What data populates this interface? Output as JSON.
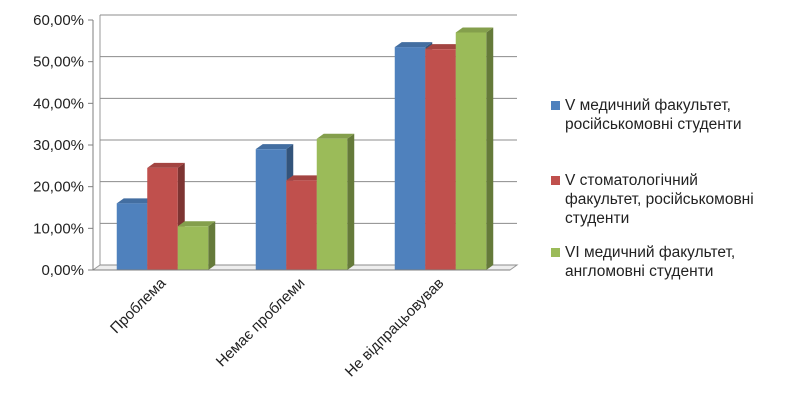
{
  "chart_data": {
    "type": "bar",
    "style": "3d-clustered-column",
    "title": "",
    "xlabel": "",
    "ylabel": "",
    "ylim": [
      0,
      60
    ],
    "y_ticks": [
      0,
      10,
      20,
      30,
      40,
      50,
      60
    ],
    "y_tick_labels": [
      "0,00%",
      "10,00%",
      "20,00%",
      "30,00%",
      "40,00%",
      "50,00%",
      "60,00%"
    ],
    "grid": true,
    "legend_position": "right",
    "categories": [
      "Проблема",
      "Немає проблеми",
      "Не відпрацьовував"
    ],
    "series": [
      {
        "name": "V медичний факультет, російськомовні студенти",
        "legend_lines": [
          "V медичний факультет,",
          "російськомовні студенти"
        ],
        "color": "#4F81BD",
        "values": [
          16,
          29,
          53.5
        ]
      },
      {
        "name": "V стоматологічний факультет, російськомовні студенти",
        "legend_lines": [
          "V стоматологічний",
          "факультет, російськомовні",
          "студенти"
        ],
        "color": "#C0504D",
        "values": [
          24.5,
          21.5,
          53
        ]
      },
      {
        "name": "VI медичний факультет, англомовні студенти",
        "legend_lines": [
          "VI медичний факультет,",
          "англомовні студенти"
        ],
        "color": "#9BBB59",
        "values": [
          10.5,
          31.5,
          57
        ]
      }
    ]
  }
}
